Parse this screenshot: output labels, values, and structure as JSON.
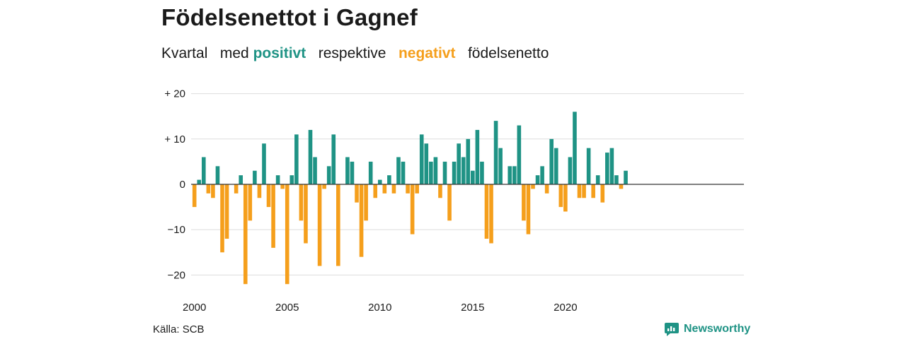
{
  "title": "Födelsenettot i Gagnef",
  "subtitle": {
    "part1": "Kvartal   med ",
    "positive": "positivt",
    "part2": "   respektive   ",
    "negative": "negativt",
    "part3": "   födelsenetto"
  },
  "source": "Källa: SCB",
  "brand": {
    "name": "Newsworthy",
    "icon": "newsworthy-logo-icon",
    "color": "#1f9385"
  },
  "colors": {
    "positive": "#1f9385",
    "negative": "#f59f1c",
    "grid": "#dddddd",
    "zero": "#333333"
  },
  "chart_data": {
    "type": "bar",
    "x_start": "2000 Q1",
    "frequency": "quarterly",
    "x_ticks": [
      "2000",
      "2005",
      "2010",
      "2015",
      "2020"
    ],
    "y_ticks": [
      "+ 20",
      "+ 10",
      "0",
      "−10",
      "−20"
    ],
    "y_tick_values": [
      20,
      10,
      0,
      -10,
      -20
    ],
    "ylim": [
      -22,
      20
    ],
    "grid": true,
    "values": [
      -5,
      1,
      6,
      -2,
      -3,
      4,
      -15,
      -12,
      0,
      -2,
      2,
      -22,
      -8,
      3,
      -3,
      9,
      -5,
      -14,
      2,
      -1,
      -22,
      2,
      11,
      -8,
      -13,
      12,
      6,
      -18,
      -1,
      4,
      11,
      -18,
      0,
      6,
      5,
      -4,
      -16,
      -8,
      5,
      -3,
      1,
      -2,
      2,
      -2,
      6,
      5,
      -2,
      -11,
      -2,
      11,
      9,
      5,
      6,
      -3,
      5,
      -8,
      5,
      9,
      6,
      10,
      3,
      12,
      5,
      -12,
      -13,
      14,
      8,
      0,
      4,
      4,
      13,
      -8,
      -11,
      -1,
      2,
      4,
      -2,
      10,
      8,
      -5,
      -6,
      6,
      16,
      -3,
      -3,
      8,
      -3,
      2,
      -4,
      7,
      8,
      2,
      -1,
      3
    ]
  }
}
